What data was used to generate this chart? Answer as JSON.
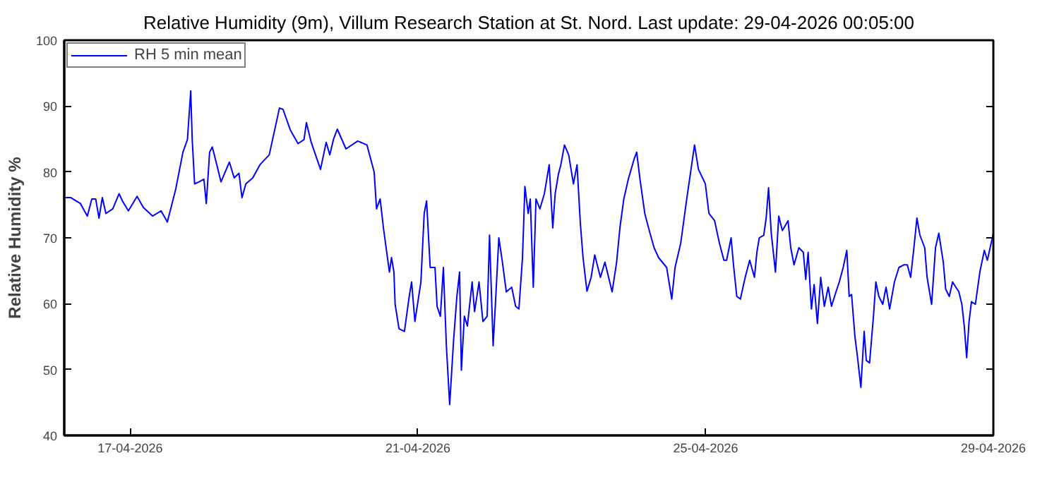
{
  "chart_data": {
    "type": "line",
    "title": "Relative Humidity (9m), Villum Research Station at St. Nord. Last update: 29-04-2026 00:05:00",
    "ylabel": "Relative Humidity %",
    "xlim": [
      "2026-04-16T02:00",
      "2026-04-29T00:00"
    ],
    "xticks": [
      {
        "value": "2026-04-17",
        "label": "17-04-2026"
      },
      {
        "value": "2026-04-21",
        "label": "21-04-2026"
      },
      {
        "value": "2026-04-25",
        "label": "25-04-2026"
      },
      {
        "value": "2026-04-29",
        "label": "29-04-2026"
      }
    ],
    "ylim": [
      40,
      100
    ],
    "yticks": [
      40,
      50,
      60,
      70,
      80,
      90,
      100
    ],
    "grid": false,
    "legend": "top left",
    "series": [
      {
        "name": "RH 5 min mean",
        "color": "#0000ff",
        "x": [
          "2026-04-16T02:00",
          "2026-04-16T04:12",
          "2026-04-16T07:24",
          "2026-04-16T09:42",
          "2026-04-16T11:12",
          "2026-04-16T12:30",
          "2026-04-16T13:36",
          "2026-04-16T14:42",
          "2026-04-16T15:54",
          "2026-04-16T18:12",
          "2026-04-16T20:18",
          "2026-04-16T21:24",
          "2026-04-16T23:24",
          "2026-04-17T02:18",
          "2026-04-17T04:24",
          "2026-04-17T07:30",
          "2026-04-17T10:18",
          "2026-04-17T12:24",
          "2026-04-17T15:12",
          "2026-04-17T17:36",
          "2026-04-17T19:06",
          "2026-04-17T20:12",
          "2026-04-17T20:42",
          "2026-04-17T21:30",
          "2026-04-17T23:00",
          "2026-04-18T00:36",
          "2026-04-18T01:24",
          "2026-04-18T02:30",
          "2026-04-18T03:24",
          "2026-04-18T04:54",
          "2026-04-18T06:18",
          "2026-04-18T09:06",
          "2026-04-18T10:42",
          "2026-04-18T12:18",
          "2026-04-18T13:18",
          "2026-04-18T14:36",
          "2026-04-18T16:54",
          "2026-04-18T19:18",
          "2026-04-18T22:24",
          "2026-04-19T01:48",
          "2026-04-19T03:00",
          "2026-04-19T05:24",
          "2026-04-19T08:00",
          "2026-04-19T10:00",
          "2026-04-19T10:48",
          "2026-04-19T12:24",
          "2026-04-19T15:30",
          "2026-04-19T17:24",
          "2026-04-19T18:36",
          "2026-04-19T19:48",
          "2026-04-19T21:06",
          "2026-04-20T00:00",
          "2026-04-20T03:54",
          "2026-04-20T07:00",
          "2026-04-20T09:24",
          "2026-04-20T10:12",
          "2026-04-20T11:24",
          "2026-04-20T12:30",
          "2026-04-20T13:36",
          "2026-04-20T14:30",
          "2026-04-20T15:12",
          "2026-04-20T16:00",
          "2026-04-20T16:24",
          "2026-04-20T17:42",
          "2026-04-20T19:30",
          "2026-04-20T21:06",
          "2026-04-20T21:54",
          "2026-04-20T23:00",
          "2026-04-21T01:00",
          "2026-04-21T02:06",
          "2026-04-21T02:54",
          "2026-04-21T04:06",
          "2026-04-21T05:42",
          "2026-04-21T06:24",
          "2026-04-21T07:30",
          "2026-04-21T08:30",
          "2026-04-21T09:30",
          "2026-04-21T10:36",
          "2026-04-21T11:54",
          "2026-04-21T13:00",
          "2026-04-21T13:54",
          "2026-04-21T14:30",
          "2026-04-21T15:30",
          "2026-04-21T16:30",
          "2026-04-21T18:06",
          "2026-04-21T18:54",
          "2026-04-21T20:24",
          "2026-04-21T21:42",
          "2026-04-21T23:06",
          "2026-04-21T23:54",
          "2026-04-22T01:06",
          "2026-04-22T01:54",
          "2026-04-22T03:00",
          "2026-04-22T04:12",
          "2026-04-22T05:30",
          "2026-04-22T07:18",
          "2026-04-22T08:36",
          "2026-04-22T09:42",
          "2026-04-22T10:54",
          "2026-04-22T11:42",
          "2026-04-22T12:48",
          "2026-04-22T13:30",
          "2026-04-22T14:30",
          "2026-04-22T15:24",
          "2026-04-22T16:42",
          "2026-04-22T18:12",
          "2026-04-22T19:48",
          "2026-04-22T21:00",
          "2026-04-22T21:48",
          "2026-04-22T22:54",
          "2026-04-22T23:42",
          "2026-04-23T00:54",
          "2026-04-23T02:18",
          "2026-04-23T03:54",
          "2026-04-23T05:06",
          "2026-04-23T06:12",
          "2026-04-23T07:06",
          "2026-04-23T08:24",
          "2026-04-23T09:48",
          "2026-04-23T11:00",
          "2026-04-23T12:54",
          "2026-04-23T14:24",
          "2026-04-23T16:48",
          "2026-04-23T18:18",
          "2026-04-23T19:24",
          "2026-04-23T20:42",
          "2026-04-23T22:12",
          "2026-04-24T00:06",
          "2026-04-24T01:00",
          "2026-04-24T02:06",
          "2026-04-24T03:42",
          "2026-04-24T05:12",
          "2026-04-24T06:48",
          "2026-04-24T08:18",
          "2026-04-24T11:00",
          "2026-04-24T12:42",
          "2026-04-24T13:48",
          "2026-04-24T15:42",
          "2026-04-24T17:42",
          "2026-04-24T20:18",
          "2026-04-24T21:36",
          "2026-04-24T23:54",
          "2026-04-25T01:06",
          "2026-04-25T03:00",
          "2026-04-25T04:36",
          "2026-04-25T06:06",
          "2026-04-25T07:00",
          "2026-04-25T08:30",
          "2026-04-25T09:18",
          "2026-04-25T10:24",
          "2026-04-25T11:36",
          "2026-04-25T13:12",
          "2026-04-25T14:42",
          "2026-04-25T16:18",
          "2026-04-25T17:06",
          "2026-04-25T17:54",
          "2026-04-25T19:24",
          "2026-04-25T20:12",
          "2026-04-25T21:00",
          "2026-04-25T21:54",
          "2026-04-25T23:18",
          "2026-04-26T00:24",
          "2026-04-26T01:36",
          "2026-04-26T03:30",
          "2026-04-26T04:24",
          "2026-04-26T05:30",
          "2026-04-26T07:06",
          "2026-04-26T08:36",
          "2026-04-26T09:24",
          "2026-04-26T10:12",
          "2026-04-26T11:18",
          "2026-04-26T12:12",
          "2026-04-26T13:18",
          "2026-04-26T14:24",
          "2026-04-26T15:36",
          "2026-04-26T16:54",
          "2026-04-26T18:00",
          "2026-04-26T19:30",
          "2026-04-26T20:36",
          "2026-04-26T21:54",
          "2026-04-26T23:06",
          "2026-04-26T23:54",
          "2026-04-27T00:42",
          "2026-04-27T01:48",
          "2026-04-27T02:48",
          "2026-04-27T03:48",
          "2026-04-27T04:54",
          "2026-04-27T05:36",
          "2026-04-27T06:42",
          "2026-04-27T08:00",
          "2026-04-27T08:48",
          "2026-04-27T09:48",
          "2026-04-27T11:06",
          "2026-04-27T12:12",
          "2026-04-27T13:24",
          "2026-04-27T15:00",
          "2026-04-27T16:30",
          "2026-04-27T18:06",
          "2026-04-27T19:18",
          "2026-04-27T20:24",
          "2026-04-27T21:30",
          "2026-04-27T22:30",
          "2026-04-27T23:30",
          "2026-04-28T01:06",
          "2026-04-28T01:54",
          "2026-04-28T03:24",
          "2026-04-28T04:42",
          "2026-04-28T05:48",
          "2026-04-28T07:18",
          "2026-04-28T08:06",
          "2026-04-28T09:18",
          "2026-04-28T10:24",
          "2026-04-28T11:30",
          "2026-04-28T12:30",
          "2026-04-28T13:30",
          "2026-04-28T14:18",
          "2026-04-28T15:06",
          "2026-04-28T15:54",
          "2026-04-28T16:42",
          "2026-04-28T18:00",
          "2026-04-28T19:30",
          "2026-04-28T21:00",
          "2026-04-28T22:00",
          "2026-04-29T00:00"
        ],
        "values": [
          76.1,
          76.1,
          75.2,
          73.3,
          75.9,
          75.9,
          73.0,
          76.1,
          73.7,
          74.4,
          76.7,
          75.6,
          74.1,
          76.3,
          74.6,
          73.3,
          74.1,
          72.4,
          77.4,
          83.0,
          84.9,
          92.3,
          84.9,
          78.2,
          78.5,
          78.9,
          75.2,
          83.0,
          83.8,
          81.1,
          78.5,
          81.5,
          79.1,
          79.8,
          76.1,
          78.2,
          79.1,
          81.1,
          82.6,
          89.7,
          89.5,
          86.4,
          84.3,
          84.9,
          87.5,
          84.5,
          80.4,
          84.5,
          82.6,
          84.9,
          86.5,
          83.5,
          84.7,
          84.1,
          80.0,
          74.4,
          75.9,
          71.5,
          67.8,
          64.8,
          67.0,
          64.8,
          59.9,
          56.2,
          55.8,
          61.1,
          63.3,
          57.3,
          63.3,
          73.7,
          75.6,
          65.5,
          65.5,
          59.6,
          58.1,
          65.5,
          53.6,
          44.7,
          54.4,
          61.1,
          64.8,
          49.9,
          58.1,
          56.6,
          63.3,
          58.8,
          63.3,
          57.3,
          58.1,
          70.4,
          53.6,
          60.3,
          70.0,
          66.3,
          61.8,
          62.5,
          59.6,
          59.2,
          67.0,
          77.8,
          73.7,
          75.9,
          62.5,
          75.9,
          74.4,
          76.7,
          81.1,
          71.5,
          76.7,
          79.7,
          81.1,
          84.1,
          82.6,
          78.2,
          81.1,
          72.2,
          67.0,
          61.9,
          64.0,
          67.4,
          64.0,
          66.3,
          61.8,
          66.3,
          71.5,
          75.9,
          78.9,
          81.9,
          83.0,
          78.9,
          73.7,
          71.1,
          68.5,
          67.0,
          65.5,
          60.7,
          65.5,
          69.2,
          75.9,
          84.1,
          80.4,
          78.2,
          73.7,
          72.6,
          69.2,
          66.6,
          66.6,
          70.0,
          65.9,
          61.1,
          60.7,
          64.0,
          66.6,
          64.0,
          67.8,
          70.0,
          70.4,
          73.0,
          77.6,
          70.7,
          64.8,
          73.3,
          71.1,
          72.6,
          68.5,
          65.9,
          68.5,
          67.8,
          63.7,
          67.8,
          59.2,
          62.9,
          57.0,
          64.0,
          59.6,
          62.5,
          59.6,
          61.8,
          63.3,
          65.5,
          68.1,
          61.1,
          61.4,
          55.1,
          51.4,
          47.3,
          55.8,
          51.4,
          51.0,
          58.1,
          63.3,
          61.1,
          59.9,
          62.5,
          59.2,
          63.3,
          65.5,
          65.9,
          65.9,
          64.0,
          68.5,
          73.0,
          70.4,
          68.5,
          64.0,
          59.9,
          68.5,
          70.7,
          66.3,
          62.2,
          61.1,
          63.3,
          62.5,
          61.8,
          59.9,
          56.6,
          51.8,
          57.3,
          60.3,
          59.9,
          64.8,
          68.1,
          66.6,
          70.7
        ]
      }
    ]
  }
}
